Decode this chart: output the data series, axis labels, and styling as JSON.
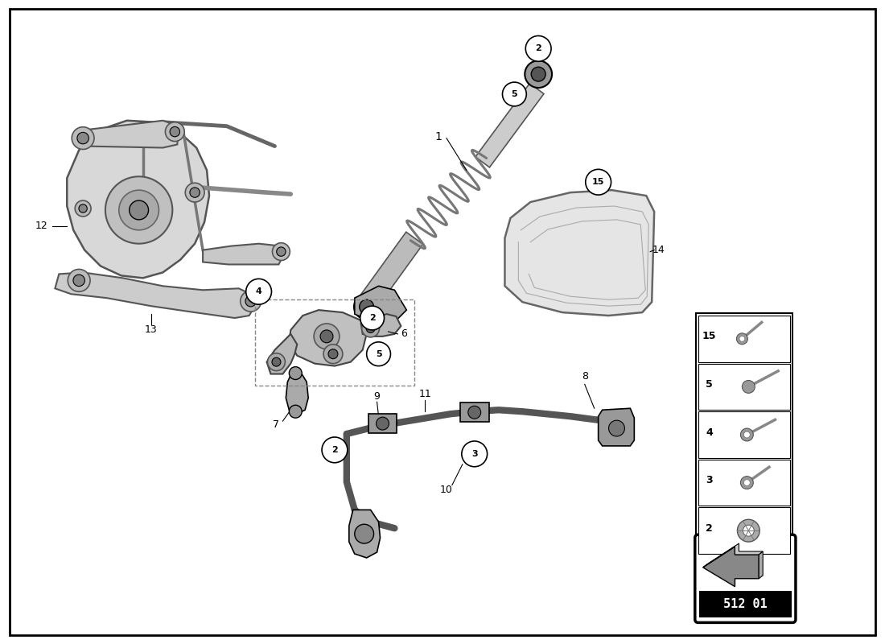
{
  "bg_color": "#ffffff",
  "diagram_code": "512 01",
  "fig_width": 11.0,
  "fig_height": 8.0,
  "dpi": 100,
  "parts_legend": [
    {
      "num": 15
    },
    {
      "num": 5
    },
    {
      "num": 4
    },
    {
      "num": 3
    },
    {
      "num": 2
    }
  ],
  "shock_color": "#c8c8c8",
  "shock_edge": "#555555",
  "spring_color": "#777777",
  "subframe_fill": "#d0d0d0",
  "subframe_edge": "#555555",
  "shield_fill": "#e5e5e5",
  "shield_edge": "#666666",
  "line_color": "#000000",
  "label_circle_fill": "#ffffff",
  "label_circle_edge": "#000000"
}
